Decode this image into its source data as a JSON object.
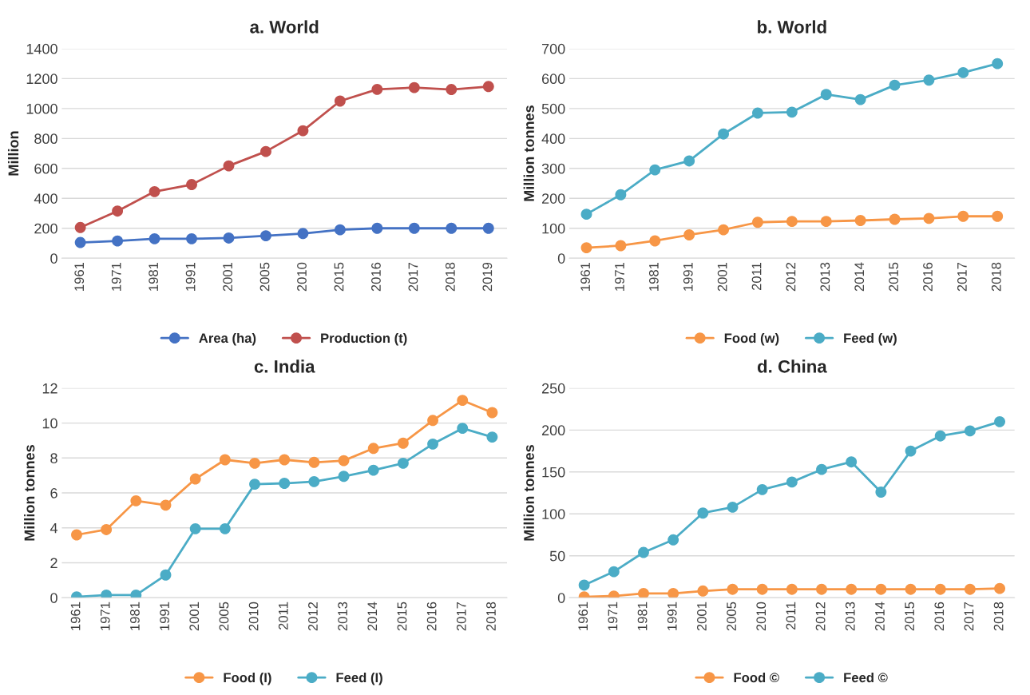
{
  "chart_data": [
    {
      "type": "line",
      "title": "a. World",
      "ylabel": "Million",
      "categories": [
        "1961",
        "1971",
        "1981",
        "1991",
        "2001",
        "2005",
        "2010",
        "2015",
        "2016",
        "2017",
        "2018",
        "2019"
      ],
      "series": [
        {
          "name": "Area (ha)",
          "color": "#4472c4",
          "values": [
            105,
            115,
            130,
            130,
            135,
            150,
            165,
            190,
            200,
            200,
            200,
            200
          ]
        },
        {
          "name": "Production (t)",
          "color": "#c0504d",
          "values": [
            205,
            315,
            445,
            492,
            617,
            713,
            852,
            1050,
            1128,
            1140,
            1127,
            1147
          ]
        }
      ],
      "ylim": [
        0,
        1400
      ],
      "yticks": [
        0,
        200,
        400,
        600,
        800,
        1000,
        1200,
        1400
      ],
      "grid": "y",
      "legend": "bottom",
      "marker": "circle"
    },
    {
      "type": "line",
      "title": "b. World",
      "ylabel": "Million tonnes",
      "categories": [
        "1961",
        "1971",
        "1981",
        "1991",
        "2001",
        "2011",
        "2012",
        "2013",
        "2014",
        "2015",
        "2016",
        "2017",
        "2018"
      ],
      "series": [
        {
          "name": "Food (w)",
          "color": "#f79646",
          "values": [
            35,
            42,
            58,
            78,
            95,
            120,
            123,
            123,
            126,
            130,
            133,
            140,
            140
          ]
        },
        {
          "name": "Feed (w)",
          "color": "#4bacc6",
          "values": [
            147,
            212,
            295,
            325,
            415,
            485,
            488,
            547,
            530,
            578,
            595,
            620,
            650
          ]
        }
      ],
      "ylim": [
        0,
        700
      ],
      "yticks": [
        0,
        100,
        200,
        300,
        400,
        500,
        600,
        700
      ],
      "grid": "y",
      "legend": "bottom",
      "marker": "circle"
    },
    {
      "type": "line",
      "title": "c. India",
      "ylabel": "Million tonnes",
      "categories": [
        "1961",
        "1971",
        "1981",
        "1991",
        "2001",
        "2005",
        "2010",
        "2011",
        "2012",
        "2013",
        "2014",
        "2015",
        "2016",
        "2017",
        "2018"
      ],
      "series": [
        {
          "name": "Food (I)",
          "color": "#f79646",
          "values": [
            3.6,
            3.9,
            5.55,
            5.3,
            6.8,
            7.9,
            7.7,
            7.9,
            7.75,
            7.85,
            8.55,
            8.85,
            10.15,
            11.3,
            10.6
          ]
        },
        {
          "name": "Feed (I)",
          "color": "#4bacc6",
          "values": [
            0.05,
            0.15,
            0.15,
            1.3,
            3.95,
            3.95,
            6.5,
            6.55,
            6.65,
            6.95,
            7.3,
            7.7,
            8.8,
            9.7,
            9.2
          ]
        }
      ],
      "ylim": [
        0,
        12
      ],
      "yticks": [
        0,
        2,
        4,
        6,
        8,
        10,
        12
      ],
      "grid": "y",
      "legend": "bottom",
      "marker": "circle"
    },
    {
      "type": "line",
      "title": "d. China",
      "ylabel": "Million tonnes",
      "categories": [
        "1961",
        "1971",
        "1981",
        "1991",
        "2001",
        "2005",
        "2010",
        "2011",
        "2012",
        "2013",
        "2014",
        "2015",
        "2016",
        "2017",
        "2018"
      ],
      "series": [
        {
          "name": "Food ©",
          "color": "#f79646",
          "values": [
            1,
            2,
            5,
            5,
            8,
            10,
            10,
            10,
            10,
            10,
            10,
            10,
            10,
            10,
            11
          ]
        },
        {
          "name": "Feed ©",
          "color": "#4bacc6",
          "values": [
            15,
            31,
            54,
            69,
            101,
            108,
            129,
            138,
            153,
            162,
            126,
            175,
            193,
            199,
            210
          ]
        }
      ],
      "ylim": [
        0,
        250
      ],
      "yticks": [
        0,
        50,
        100,
        150,
        200,
        250
      ],
      "grid": "y",
      "legend": "bottom",
      "marker": "circle"
    }
  ]
}
